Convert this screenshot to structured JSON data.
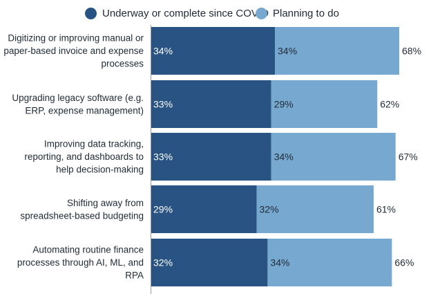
{
  "chart_data": {
    "type": "bar",
    "orientation": "horizontal",
    "stacked": true,
    "title": "",
    "xlabel": "",
    "ylabel": "",
    "xlim": [
      0,
      68
    ],
    "grid": false,
    "legend_position": "top",
    "categories": [
      "Digitizing or improving manual or paper-based invoice and expense processes",
      "Upgrading legacy software (e.g. ERP, expense management)",
      "Improving data tracking, reporting, and dashboards to help decision-making",
      "Shifting away from spreadsheet-based budgeting",
      "Automating routine finance processes through AI, ML, and RPA"
    ],
    "category_lines": [
      [
        "Digitizing or improving manual or",
        "paper-based invoice and expense",
        "processes"
      ],
      [
        "Upgrading legacy software (e.g.",
        "ERP, expense management)"
      ],
      [
        "Improving data tracking,",
        "reporting, and dashboards to",
        "help decision-making"
      ],
      [
        "Shifting away from",
        "spreadsheet-based budgeting"
      ],
      [
        "Automating routine finance",
        "processes through AI, ML, and",
        "RPA"
      ]
    ],
    "series": [
      {
        "name": "Underway or complete since COVID",
        "color": "#285383",
        "values": [
          34,
          33,
          33,
          29,
          32
        ],
        "labels": [
          "34%",
          "33%",
          "33%",
          "29%",
          "32%"
        ]
      },
      {
        "name": "Planning to do",
        "color": "#77a8cf",
        "values": [
          34,
          29,
          34,
          32,
          34
        ],
        "labels": [
          "34%",
          "29%",
          "34%",
          "32%",
          "34%"
        ]
      }
    ],
    "totals": [
      68,
      62,
      67,
      61,
      66
    ],
    "total_labels": [
      "68%",
      "62%",
      "67%",
      "61%",
      "66%"
    ]
  }
}
